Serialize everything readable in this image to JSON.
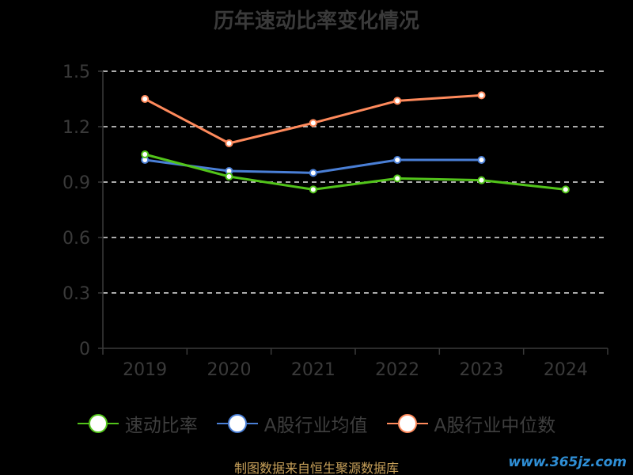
{
  "chart_data": {
    "type": "line",
    "title": "历年速动比率变化情况",
    "categories": [
      "2019",
      "2020",
      "2021",
      "2022",
      "2023",
      "2024"
    ],
    "y_ticks": [
      "0",
      "0.3",
      "0.6",
      "0.9",
      "1.2",
      "1.5"
    ],
    "ylim": [
      0,
      1.5
    ],
    "grid": true,
    "legend_position": "bottom",
    "series": [
      {
        "name": "速动比率",
        "color": "#52c41a",
        "values": [
          1.05,
          0.93,
          0.86,
          0.92,
          0.91,
          0.86
        ]
      },
      {
        "name": "A股行业均值",
        "color": "#4a7fd6",
        "values": [
          1.02,
          0.96,
          0.95,
          1.02,
          1.02,
          null
        ]
      },
      {
        "name": "A股行业中位数",
        "color": "#ff8a5c",
        "values": [
          1.35,
          1.11,
          1.22,
          1.34,
          1.37,
          null
        ]
      }
    ]
  },
  "footer": {
    "source": "制图数据来自恒生聚源数据库",
    "watermark": "www.365jz.com"
  }
}
